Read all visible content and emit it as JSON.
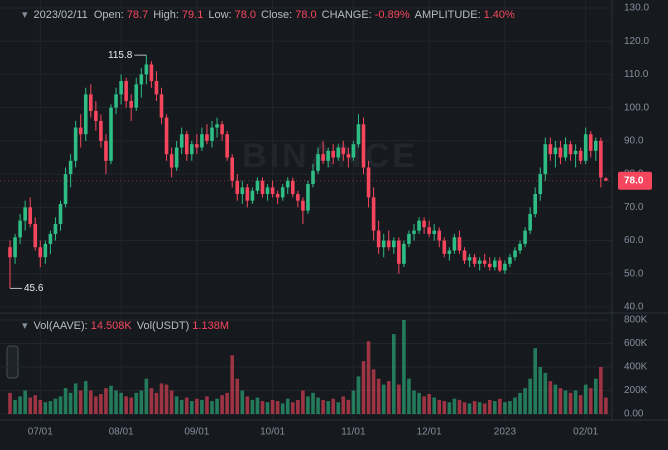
{
  "header": {
    "date": "2023/02/11",
    "items": [
      {
        "label": "Open:",
        "value": "78.7"
      },
      {
        "label": "High:",
        "value": "79.1"
      },
      {
        "label": "Low:",
        "value": "78.0"
      },
      {
        "label": "Close:",
        "value": "78.0"
      },
      {
        "label": "CHANGE:",
        "value": "-0.89%"
      },
      {
        "label": "AMPLITUDE:",
        "value": "1.40%"
      }
    ]
  },
  "volume_header": {
    "items": [
      {
        "label": "Vol(AAVE):",
        "value": "14.508K"
      },
      {
        "label": "Vol(USDT)",
        "value": "1.138M"
      }
    ]
  },
  "watermark": "BINANCE",
  "chart_data": [
    {
      "type": "candlestick",
      "up_color": "#2ebd85",
      "down_color": "#f6465d",
      "grid": true,
      "ylim": [
        38.5,
        132.4
      ],
      "yticks": [
        {
          "value": 40,
          "label": "40.0"
        },
        {
          "value": 50,
          "label": "50.0"
        },
        {
          "value": 60,
          "label": "60.0"
        },
        {
          "value": 70,
          "label": "70.0"
        },
        {
          "value": 80,
          "label": "80.0"
        },
        {
          "value": 90,
          "label": "90.0"
        },
        {
          "value": 100,
          "label": "100.0"
        },
        {
          "value": 110,
          "label": "110.0"
        },
        {
          "value": 120,
          "label": "120.0"
        },
        {
          "value": 130,
          "label": "130.0"
        }
      ],
      "last_price": {
        "value": 78,
        "label": "78.0"
      },
      "categories": [
        null,
        null,
        null,
        null,
        null,
        null,
        "07/01",
        null,
        null,
        null,
        null,
        null,
        null,
        null,
        null,
        null,
        null,
        null,
        null,
        null,
        null,
        null,
        "08/01",
        null,
        null,
        null,
        null,
        null,
        null,
        null,
        null,
        null,
        null,
        null,
        null,
        null,
        null,
        "09/01",
        null,
        null,
        null,
        null,
        null,
        null,
        null,
        null,
        null,
        null,
        null,
        null,
        null,
        null,
        "10/01",
        null,
        null,
        null,
        null,
        null,
        null,
        null,
        null,
        null,
        null,
        null,
        null,
        null,
        null,
        null,
        "11/01",
        null,
        null,
        null,
        null,
        null,
        null,
        null,
        null,
        null,
        null,
        null,
        null,
        null,
        null,
        "12/01",
        null,
        null,
        null,
        null,
        null,
        null,
        null,
        null,
        null,
        null,
        null,
        null,
        null,
        null,
        "2023",
        null,
        null,
        null,
        null,
        null,
        null,
        null,
        null,
        null,
        null,
        null,
        null,
        null,
        null,
        null,
        "02/01",
        null,
        null,
        null,
        null
      ],
      "ohlc": [
        [
          58,
          60,
          45.6,
          55
        ],
        [
          55,
          62,
          53,
          61
        ],
        [
          61,
          68,
          59,
          66
        ],
        [
          66,
          72,
          63,
          70
        ],
        [
          70,
          73,
          64,
          65
        ],
        [
          65,
          67,
          57,
          58
        ],
        [
          58,
          60,
          52,
          55
        ],
        [
          55,
          60,
          53,
          59
        ],
        [
          59,
          63,
          56,
          62
        ],
        [
          62,
          67,
          60,
          65
        ],
        [
          65,
          72,
          63,
          71
        ],
        [
          71,
          82,
          70,
          80
        ],
        [
          80,
          86,
          76,
          84
        ],
        [
          84,
          96,
          82,
          94
        ],
        [
          94,
          98,
          88,
          92
        ],
        [
          92,
          106,
          90,
          104
        ],
        [
          104,
          107,
          97,
          99
        ],
        [
          99,
          102,
          93,
          96
        ],
        [
          96,
          98,
          88,
          90
        ],
        [
          90,
          92,
          80,
          84
        ],
        [
          84,
          101,
          83,
          100
        ],
        [
          100,
          106,
          98,
          104
        ],
        [
          104,
          110,
          101,
          108
        ],
        [
          108,
          109,
          100,
          102
        ],
        [
          102,
          104,
          96,
          100
        ],
        [
          100,
          109,
          99,
          107
        ],
        [
          107,
          112,
          103,
          110
        ],
        [
          110,
          115.8,
          107,
          113
        ],
        [
          113,
          114,
          106,
          108
        ],
        [
          108,
          111,
          102,
          104
        ],
        [
          104,
          106,
          95,
          97
        ],
        [
          97,
          98,
          84,
          86
        ],
        [
          86,
          88,
          79,
          82
        ],
        [
          82,
          90,
          81,
          88
        ],
        [
          88,
          94,
          86,
          92
        ],
        [
          92,
          93,
          84,
          86
        ],
        [
          86,
          90,
          84,
          89
        ],
        [
          89,
          92,
          86,
          88
        ],
        [
          88,
          94,
          87,
          92
        ],
        [
          92,
          95,
          89,
          90
        ],
        [
          90,
          96,
          88,
          94
        ],
        [
          94,
          97,
          91,
          95
        ],
        [
          95,
          96,
          90,
          92
        ],
        [
          92,
          93,
          84,
          85
        ],
        [
          85,
          86,
          76,
          78
        ],
        [
          78,
          80,
          72,
          74
        ],
        [
          74,
          78,
          71,
          76
        ],
        [
          76,
          77,
          70,
          72
        ],
        [
          72,
          76,
          71,
          75
        ],
        [
          75,
          79,
          74,
          78
        ],
        [
          78,
          79,
          73,
          74
        ],
        [
          74,
          77,
          72,
          76
        ],
        [
          76,
          78,
          73,
          74
        ],
        [
          74,
          75,
          71,
          73
        ],
        [
          73,
          77,
          72,
          76
        ],
        [
          76,
          79,
          74,
          78
        ],
        [
          78,
          79,
          73,
          74
        ],
        [
          74,
          75,
          70,
          72
        ],
        [
          72,
          73,
          65,
          69
        ],
        [
          69,
          78,
          68,
          77
        ],
        [
          77,
          83,
          76,
          81
        ],
        [
          81,
          88,
          80,
          86
        ],
        [
          86,
          90,
          83,
          84
        ],
        [
          84,
          88,
          82,
          87
        ],
        [
          87,
          89,
          83,
          85
        ],
        [
          85,
          89,
          84,
          88
        ],
        [
          88,
          90,
          84,
          86
        ],
        [
          86,
          88,
          82,
          85
        ],
        [
          85,
          90,
          84,
          89
        ],
        [
          89,
          98,
          88,
          95
        ],
        [
          95,
          97,
          80,
          82
        ],
        [
          82,
          84,
          70,
          73
        ],
        [
          73,
          76,
          60,
          63
        ],
        [
          63,
          66,
          56,
          58
        ],
        [
          58,
          62,
          55,
          60
        ],
        [
          60,
          63,
          57,
          58
        ],
        [
          58,
          61,
          56,
          60
        ],
        [
          60,
          61,
          50,
          53
        ],
        [
          53,
          60,
          52,
          59
        ],
        [
          59,
          63,
          58,
          62
        ],
        [
          62,
          65,
          60,
          63
        ],
        [
          63,
          67,
          62,
          66
        ],
        [
          66,
          67,
          62,
          64
        ],
        [
          64,
          66,
          61,
          62
        ],
        [
          62,
          65,
          60,
          63
        ],
        [
          63,
          64,
          58,
          60
        ],
        [
          60,
          61,
          55,
          56
        ],
        [
          56,
          58,
          54,
          57
        ],
        [
          57,
          62,
          56,
          61
        ],
        [
          61,
          63,
          56,
          57
        ],
        [
          57,
          58,
          53,
          54
        ],
        [
          54,
          56,
          52,
          55
        ],
        [
          55,
          56,
          52,
          53
        ],
        [
          53,
          55,
          51,
          54
        ],
        [
          54,
          56,
          52,
          53
        ],
        [
          53,
          55,
          51,
          52
        ],
        [
          52,
          55,
          51,
          54
        ],
        [
          54,
          55,
          50.5,
          51
        ],
        [
          51,
          54,
          50,
          53
        ],
        [
          53,
          56,
          52,
          55
        ],
        [
          55,
          58,
          54,
          57
        ],
        [
          57,
          60,
          56,
          59
        ],
        [
          59,
          64,
          58,
          63
        ],
        [
          63,
          70,
          62,
          68
        ],
        [
          68,
          76,
          67,
          74
        ],
        [
          74,
          82,
          72,
          80
        ],
        [
          80,
          91,
          78,
          89
        ],
        [
          89,
          91,
          84,
          86
        ],
        [
          86,
          90,
          82,
          88
        ],
        [
          88,
          90,
          83,
          85
        ],
        [
          85,
          91,
          84,
          89
        ],
        [
          89,
          90,
          84,
          86
        ],
        [
          86,
          89,
          82,
          87
        ],
        [
          87,
          88,
          83,
          84
        ],
        [
          84,
          94,
          83,
          92
        ],
        [
          92,
          93,
          85,
          87
        ],
        [
          87,
          91,
          84,
          90
        ],
        [
          90,
          91,
          76,
          79
        ],
        [
          78.7,
          79.1,
          78.0,
          78.0
        ]
      ]
    },
    {
      "type": "bar",
      "ylim": [
        0,
        834000
      ],
      "yticks": [
        {
          "value": 0,
          "label": "0.00"
        },
        {
          "value": 200000,
          "label": "200K"
        },
        {
          "value": 400000,
          "label": "400K"
        },
        {
          "value": 600000,
          "label": "600K"
        },
        {
          "value": 800000,
          "label": "800K"
        }
      ],
      "values": [
        180000,
        120000,
        150000,
        200000,
        140000,
        160000,
        120000,
        100000,
        110000,
        130000,
        150000,
        220000,
        180000,
        260000,
        200000,
        280000,
        200000,
        150000,
        170000,
        220000,
        240000,
        200000,
        180000,
        150000,
        140000,
        180000,
        200000,
        300000,
        220000,
        180000,
        260000,
        250000,
        200000,
        150000,
        120000,
        140000,
        110000,
        130000,
        120000,
        150000,
        110000,
        130000,
        160000,
        180000,
        500000,
        300000,
        200000,
        150000,
        120000,
        140000,
        110000,
        100000,
        120000,
        110000,
        90000,
        130000,
        100000,
        120000,
        200000,
        150000,
        180000,
        140000,
        120000,
        110000,
        130000,
        100000,
        150000,
        120000,
        200000,
        320000,
        450000,
        620000,
        380000,
        300000,
        250000,
        280000,
        680000,
        250000,
        800000,
        300000,
        200000,
        180000,
        150000,
        170000,
        140000,
        120000,
        110000,
        100000,
        130000,
        120000,
        100000,
        90000,
        110000,
        100000,
        90000,
        120000,
        110000,
        130000,
        100000,
        110000,
        140000,
        180000,
        220000,
        300000,
        560000,
        400000,
        350000,
        280000,
        250000,
        220000,
        200000,
        180000,
        200000,
        160000,
        250000,
        220000,
        300000,
        400000,
        140000
      ]
    }
  ]
}
